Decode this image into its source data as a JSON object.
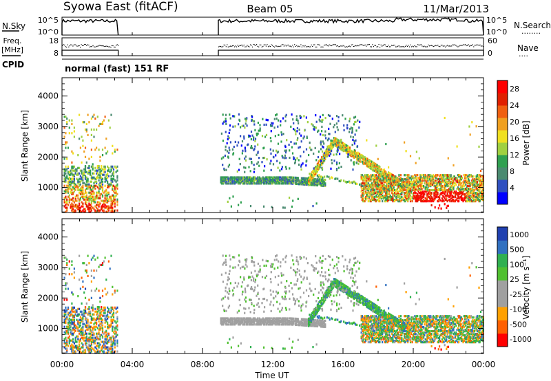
{
  "header": {
    "station": "Syowa East (fitACF)",
    "beam": "Beam 05",
    "date": "11/Mar/2013"
  },
  "noise_panel": {
    "left_label": "N.Sky",
    "right_label": "N.Search",
    "right_legend": "........",
    "top_tick": "10^5",
    "bottom_tick": "10^0"
  },
  "freq_panel": {
    "left_label_line1": "Freq.",
    "left_label_line2": "[MHz]",
    "left_top_tick": "18",
    "left_bottom_tick": "8",
    "right_label": "Nave",
    "right_legend": "....",
    "right_top_tick": "60",
    "right_bottom_tick": "0"
  },
  "cpid": {
    "label": "CPID",
    "mode": "normal (fast) 151 RF"
  },
  "colors": {
    "power": [
      "#0000ff",
      "#3050c0",
      "#4a8a70",
      "#2fa050",
      "#a0d040",
      "#f0e020",
      "#f0a020",
      "#f06010",
      "#e02000",
      "#ff0000"
    ],
    "velocity": [
      "#ff0000",
      "#ff6000",
      "#ffa000",
      "#a0a0a0",
      "#a0a0a0",
      "#50c030",
      "#30b050",
      "#3070c0",
      "#2040b0"
    ]
  },
  "chart_data": [
    {
      "type": "heatmap",
      "name": "power-panel",
      "xlabel": "",
      "ylabel": "Slant Range [km]",
      "x_ticks": [
        "00:00",
        "04:00",
        "08:00",
        "12:00",
        "16:00",
        "20:00",
        "00:00"
      ],
      "x_range_hours": [
        0,
        24
      ],
      "y_ticks": [
        1000,
        2000,
        3000,
        4000
      ],
      "y_range_km": [
        180,
        4600
      ],
      "colorbar_label": "Power [dB]",
      "colorbar_ticks": [
        4,
        8,
        12,
        16,
        20,
        24,
        28
      ],
      "colorbar_range": [
        0,
        30
      ]
    },
    {
      "type": "heatmap",
      "name": "velocity-panel",
      "xlabel": "Time UT",
      "ylabel": "Slant Range [km]",
      "x_ticks": [
        "00:00",
        "04:00",
        "08:00",
        "12:00",
        "16:00",
        "20:00",
        "00:00"
      ],
      "x_range_hours": [
        0,
        24
      ],
      "y_ticks": [
        1000,
        2000,
        3000,
        4000
      ],
      "y_range_km": [
        180,
        4600
      ],
      "colorbar_label": "Velocity [m s⁻¹]",
      "colorbar_ticks": [
        "1000",
        "500",
        "100",
        "25",
        "-25",
        "-100",
        "-500",
        "-1000"
      ]
    }
  ],
  "data_gaps_hours": [
    [
      3.2,
      8.9
    ]
  ]
}
